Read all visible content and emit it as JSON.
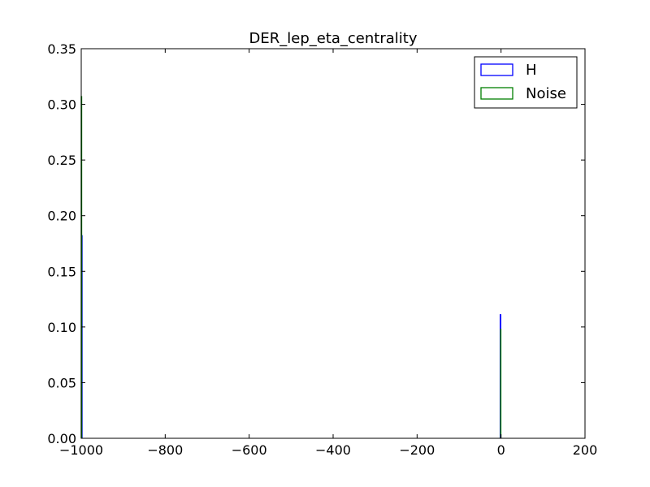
{
  "chart_data": {
    "type": "histogram",
    "title": "DER_lep_eta_centrality",
    "xlabel": "",
    "ylabel": "",
    "xlim": [
      -1000,
      200
    ],
    "ylim": [
      0,
      0.35
    ],
    "xticks": [
      -1000,
      -800,
      -600,
      -400,
      -200,
      0,
      200
    ],
    "xtick_labels": [
      "−1000",
      "−800",
      "−600",
      "−400",
      "−200",
      "0",
      "200"
    ],
    "yticks": [
      0,
      0.05,
      0.1,
      0.15,
      0.2,
      0.25,
      0.3,
      0.35
    ],
    "ytick_labels": [
      "0.00",
      "0.05",
      "0.10",
      "0.15",
      "0.20",
      "0.25",
      "0.30",
      "0.35"
    ],
    "grid": false,
    "legend_position": "top-right",
    "series": [
      {
        "name": "H",
        "color": "#0000ff",
        "histtype": "step",
        "bins": [
          {
            "x0": -999.0,
            "x1": -998.0,
            "y": 0.182
          },
          {
            "x0": -2.0,
            "x1": -0.6,
            "y": 0.111
          }
        ]
      },
      {
        "name": "Noise",
        "color": "#008000",
        "histtype": "step",
        "bins": [
          {
            "x0": -1000.0,
            "x1": -999.0,
            "y": 0.307
          },
          {
            "x0": -1.0,
            "x1": -0.4,
            "y": 0.098
          }
        ]
      }
    ]
  }
}
